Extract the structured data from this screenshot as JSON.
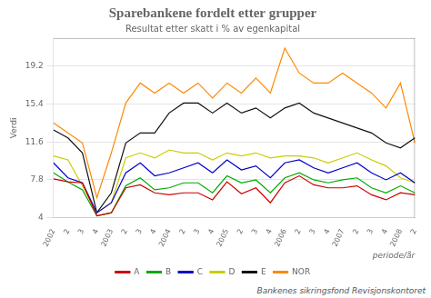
{
  "chart_data": {
    "type": "line",
    "title": "Sparebankene fordelt etter grupper",
    "subtitle": "Resultat etter skatt i % av egenkapital",
    "ylabel": "Verdi",
    "xlabel": "periode/år",
    "annotations": [
      "Bankenes sikringsfond Revisjonskontoret"
    ],
    "categories": [
      "2002",
      "2",
      "3",
      "4",
      "2003",
      "2",
      "3",
      "4",
      "2004",
      "2",
      "3",
      "4",
      "2005",
      "2",
      "3",
      "4",
      "2006",
      "2",
      "3",
      "4",
      "2007",
      "2",
      "3",
      "4",
      "2008",
      "2"
    ],
    "series": [
      {
        "name": "A",
        "color": "#cc0000",
        "values": [
          7.9,
          7.6,
          7.5,
          4.2,
          4.5,
          7.0,
          7.3,
          6.5,
          6.3,
          6.5,
          6.5,
          5.8,
          7.6,
          6.4,
          7.0,
          5.5,
          7.5,
          8.2,
          7.3,
          7.0,
          7.0,
          7.2,
          6.3,
          5.8,
          6.5,
          6.3
        ]
      },
      {
        "name": "B",
        "color": "#00aa00",
        "values": [
          8.5,
          7.6,
          6.8,
          4.2,
          4.5,
          7.2,
          8.0,
          6.8,
          7.0,
          7.5,
          7.5,
          6.5,
          8.2,
          7.5,
          7.8,
          6.5,
          8.0,
          8.5,
          7.8,
          7.5,
          7.8,
          8.0,
          7.0,
          6.5,
          7.2,
          6.5
        ]
      },
      {
        "name": "C",
        "color": "#0000cc",
        "values": [
          9.5,
          8.0,
          7.5,
          4.5,
          5.5,
          8.5,
          9.5,
          8.2,
          8.5,
          9.0,
          9.5,
          8.5,
          9.8,
          8.8,
          9.2,
          8.0,
          9.5,
          9.8,
          9.0,
          8.5,
          9.0,
          9.5,
          8.5,
          7.8,
          8.5,
          7.5
        ]
      },
      {
        "name": "D",
        "color": "#cccc00",
        "values": [
          10.2,
          9.8,
          7.2,
          4.5,
          5.5,
          10.0,
          10.5,
          10.0,
          10.8,
          10.5,
          10.5,
          9.8,
          10.5,
          10.2,
          10.5,
          10.0,
          10.2,
          10.2,
          10.0,
          9.5,
          10.0,
          10.5,
          9.8,
          9.2,
          8.0,
          7.5
        ]
      },
      {
        "name": "E",
        "color": "#111111",
        "values": [
          12.8,
          12.0,
          10.5,
          4.5,
          6.5,
          11.5,
          12.5,
          12.5,
          14.5,
          15.5,
          15.5,
          14.5,
          15.5,
          14.5,
          15.0,
          14.0,
          15.0,
          15.5,
          14.5,
          14.0,
          13.5,
          13.0,
          12.5,
          11.5,
          11.0,
          12.0
        ]
      },
      {
        "name": "NOR",
        "color": "#ff8800",
        "values": [
          13.5,
          12.5,
          11.5,
          6.0,
          10.5,
          15.5,
          17.5,
          16.5,
          17.5,
          16.5,
          17.5,
          16.0,
          17.5,
          16.5,
          18.0,
          16.5,
          21.0,
          18.5,
          17.5,
          17.5,
          18.5,
          17.5,
          16.5,
          15.0,
          17.5,
          11.5
        ]
      }
    ],
    "ylim": [
      4,
      22
    ],
    "yticks": [
      4,
      7.8,
      11.6,
      15.4,
      19.2
    ],
    "grid": true,
    "legend": "bottom"
  }
}
